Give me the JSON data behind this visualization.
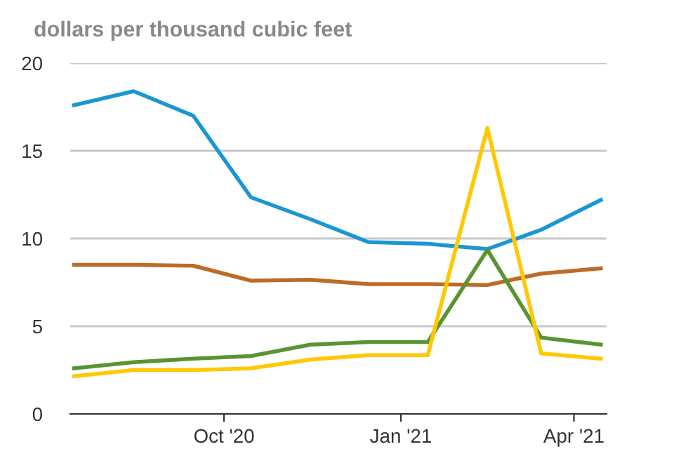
{
  "chart_data": {
    "type": "line",
    "ylabel": "dollars per thousand cubic feet",
    "x": [
      "2020-07-15",
      "2020-08-15",
      "2020-09-15",
      "2020-10-15",
      "2020-11-15",
      "2020-12-15",
      "2021-01-15",
      "2021-02-15",
      "2021-03-15",
      "2021-04-15"
    ],
    "series": [
      {
        "color": "#1a96d4",
        "values": [
          17.6,
          18.4,
          17.0,
          12.35,
          11.1,
          9.8,
          9.7,
          9.4,
          10.5,
          12.2
        ]
      },
      {
        "color": "#bd6b26",
        "values": [
          8.5,
          8.5,
          8.45,
          7.6,
          7.65,
          7.4,
          7.4,
          7.35,
          8.0,
          8.3
        ]
      },
      {
        "color": "#5a9432",
        "values": [
          2.6,
          2.95,
          3.15,
          3.3,
          3.95,
          4.1,
          4.1,
          9.35,
          4.35,
          3.95
        ]
      },
      {
        "color": "#ffc800",
        "values": [
          2.15,
          2.5,
          2.5,
          2.6,
          3.1,
          3.35,
          3.35,
          16.3,
          3.45,
          3.15
        ]
      }
    ],
    "xlim": [
      "2020-07-13",
      "2021-04-18"
    ],
    "xticks": [
      {
        "value": "2020-10-01",
        "label": "Oct '20"
      },
      {
        "value": "2021-01-01",
        "label": "Jan '21"
      },
      {
        "value": "2021-04-01",
        "label": "Apr '21"
      }
    ],
    "ylim": [
      0,
      20
    ],
    "yticks": [
      0,
      5,
      10,
      15,
      20
    ],
    "grid": "y",
    "legend": false,
    "marker": "none",
    "line_style": "solid"
  }
}
